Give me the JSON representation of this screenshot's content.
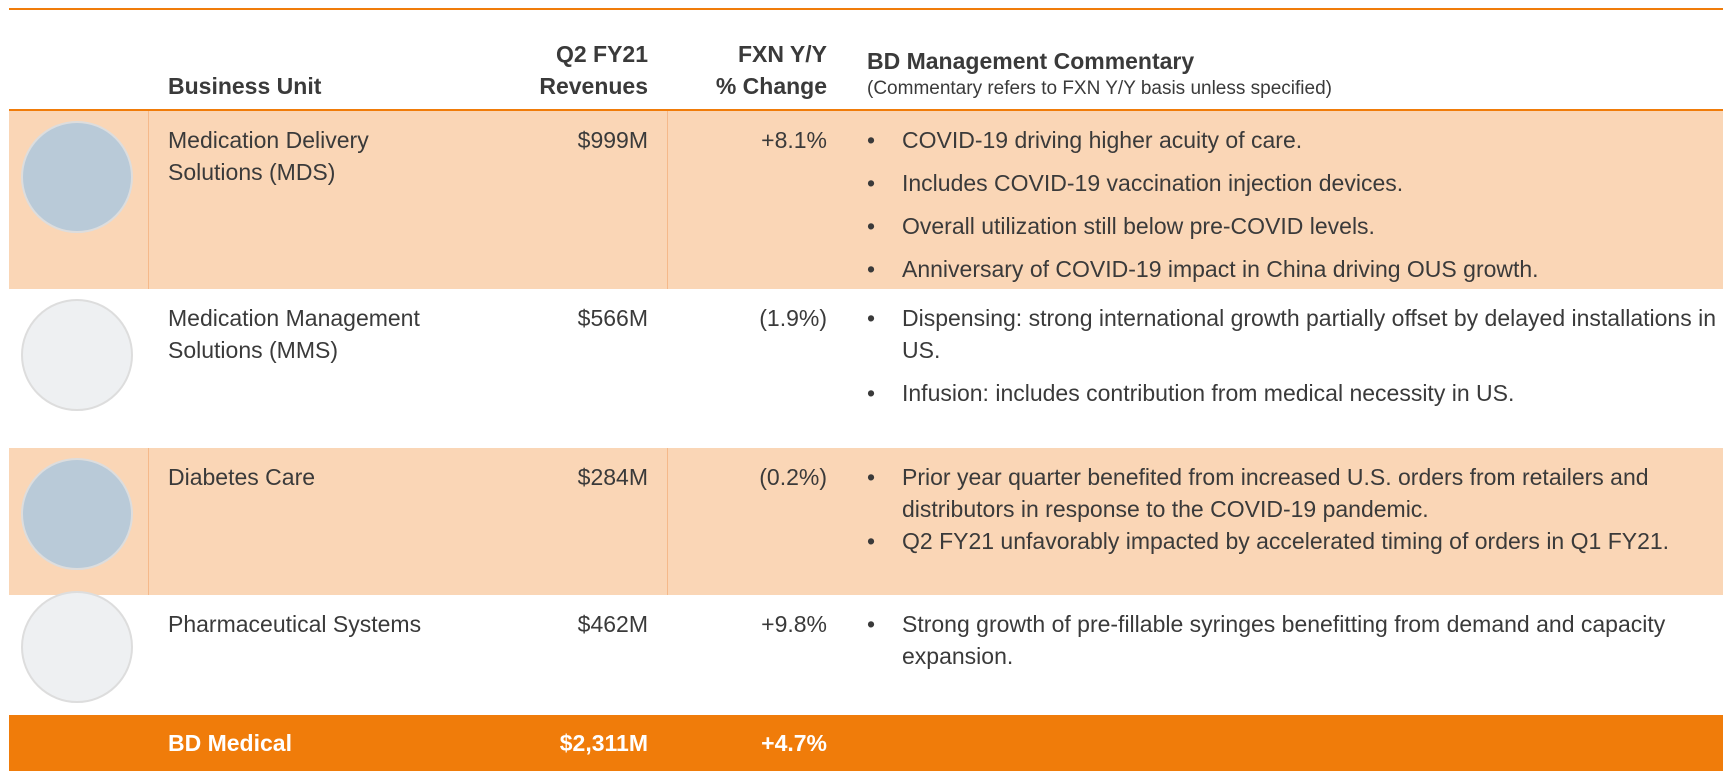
{
  "header": {
    "business_unit": "Business Unit",
    "revenues_line1": "Q2 FY21",
    "revenues_line2": "Revenues",
    "change_line1": "FXN Y/Y",
    "change_line2": "% Change",
    "commentary_title": "BD Management Commentary",
    "commentary_subtitle": "(Commentary refers to FXN Y/Y basis unless specified)"
  },
  "table": {
    "rows": [
      {
        "unit": "Medication Delivery Solutions (MDS)",
        "revenue": "$999M",
        "change": "+8.1%",
        "comments": [
          "COVID-19 driving higher acuity of care.",
          "Includes COVID-19 vaccination injection devices.",
          "Overall utilization still below pre-COVID levels.",
          "Anniversary of COVID-19 impact in China driving OUS growth."
        ]
      },
      {
        "unit": "Medication Management Solutions (MMS)",
        "revenue": "$566M",
        "change": "(1.9%)",
        "comments": [
          "Dispensing: strong international growth partially offset by delayed installations in US.",
          "Infusion: includes contribution from medical necessity in US."
        ]
      },
      {
        "unit": "Diabetes Care",
        "revenue": "$284M",
        "change": "(0.2%)",
        "comments": [
          "Prior year quarter benefited from increased U.S. orders from retailers and distributors in response to the COVID-19 pandemic.",
          "Q2 FY21 unfavorably impacted by accelerated timing of orders in Q1 FY21."
        ]
      },
      {
        "unit": "Pharmaceutical Systems",
        "revenue": "$462M",
        "change": "+9.8%",
        "comments": [
          "Strong growth of pre-fillable syringes benefitting from demand and capacity expansion."
        ]
      }
    ],
    "total": {
      "unit": "BD Medical",
      "revenue": "$2,311M",
      "change": "+4.7%"
    }
  }
}
